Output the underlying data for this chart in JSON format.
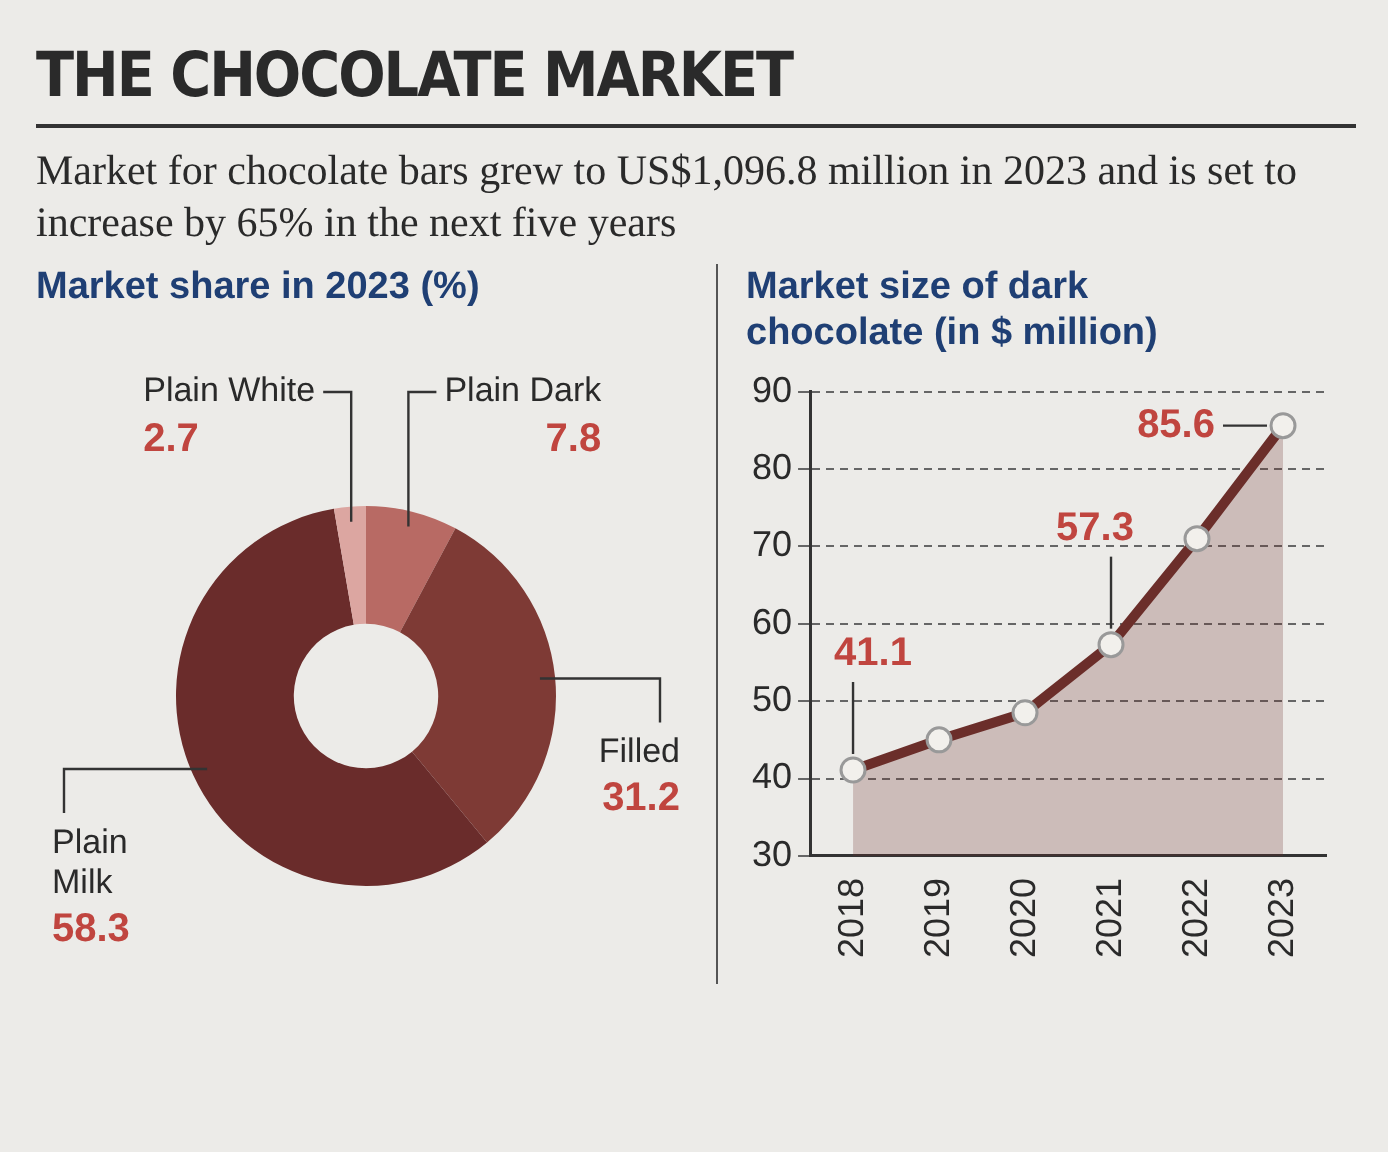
{
  "chart_data": [
    {
      "type": "other",
      "title": "THE CHOCOLATE MARKET",
      "subtitle": "Market for chocolate bars grew to US$1,096.8 million in 2023 and is set to increase by 65% in the next five years"
    },
    {
      "type": "donut",
      "title": "Market share in 2023 (%)",
      "categories": [
        "Plain Dark",
        "Filled",
        "Plain Milk",
        "Plain White"
      ],
      "values": [
        7.8,
        31.2,
        58.3,
        2.7
      ],
      "colors": [
        "#b86a64",
        "#7e3a35",
        "#6a2c2b",
        "#dca6a1"
      ],
      "data_labels": true,
      "legend": false
    },
    {
      "type": "area",
      "title": "Market size of dark chocolate (in $ million)",
      "categories": [
        "2018",
        "2019",
        "2020",
        "2021",
        "2022",
        "2023"
      ],
      "series": [
        {
          "color": "#6b2e2a",
          "values": [
            41.1,
            45,
            48.5,
            57.3,
            71,
            85.6
          ],
          "value_labels": [
            "41.1",
            null,
            null,
            "57.3",
            null,
            "85.6"
          ]
        }
      ],
      "ylim": [
        30,
        90
      ],
      "yticks": [
        30,
        40,
        50,
        60,
        70,
        80,
        90
      ],
      "grid": "y",
      "marker": "circle",
      "legend": false
    }
  ]
}
